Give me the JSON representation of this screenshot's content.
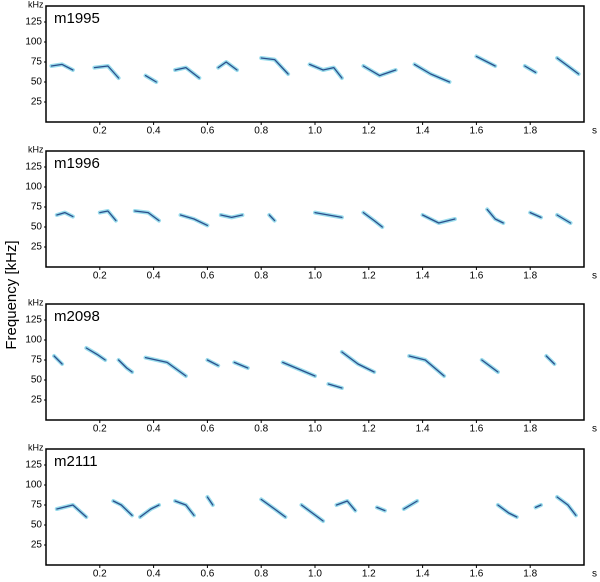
{
  "ylabel": "Frequency [kHz]",
  "chart_data": [
    {
      "type": "spectrogram",
      "title": "m1995",
      "ylabel": "kHz",
      "xlabel": "s",
      "color": "#1fb2d4",
      "xlim": [
        0,
        2
      ],
      "ylim": [
        0,
        145
      ],
      "yticks": [
        25,
        50,
        75,
        100,
        125
      ],
      "xticks": [
        0.2,
        0.4,
        0.6,
        0.8,
        {
          "value": 1,
          "label": "1.0"
        },
        1.2,
        1.4,
        1.6,
        1.8
      ],
      "syllables": [
        {
          "x": [
            0.02,
            0.06,
            0.1
          ],
          "values": [
            70,
            72,
            65
          ]
        },
        {
          "x": [
            0.18,
            0.23,
            0.27
          ],
          "values": [
            68,
            70,
            55
          ]
        },
        {
          "x": [
            0.37,
            0.41
          ],
          "values": [
            58,
            50
          ]
        },
        {
          "x": [
            0.48,
            0.52,
            0.57
          ],
          "values": [
            65,
            68,
            55
          ]
        },
        {
          "x": [
            0.64,
            0.67,
            0.71
          ],
          "values": [
            68,
            75,
            65
          ]
        },
        {
          "x": [
            0.8,
            0.85,
            0.9
          ],
          "values": [
            80,
            78,
            60
          ]
        },
        {
          "x": [
            0.98,
            1.03,
            1.07,
            1.1
          ],
          "values": [
            72,
            65,
            68,
            55
          ]
        },
        {
          "x": [
            1.18,
            1.24,
            1.3
          ],
          "values": [
            70,
            58,
            65
          ]
        },
        {
          "x": [
            1.37,
            1.43,
            1.5
          ],
          "values": [
            72,
            60,
            50
          ]
        },
        {
          "x": [
            1.6,
            1.67
          ],
          "values": [
            82,
            70
          ]
        },
        {
          "x": [
            1.78,
            1.82
          ],
          "values": [
            70,
            62
          ]
        },
        {
          "x": [
            1.9,
            1.94,
            1.98
          ],
          "values": [
            80,
            70,
            60
          ]
        }
      ]
    },
    {
      "type": "spectrogram",
      "title": "m1996",
      "ylabel": "kHz",
      "xlabel": "s",
      "color": "#1fb2d4",
      "xlim": [
        0,
        2
      ],
      "ylim": [
        0,
        145
      ],
      "yticks": [
        25,
        50,
        75,
        100,
        125
      ],
      "xticks": [
        0.2,
        0.4,
        0.6,
        0.8,
        {
          "value": 1,
          "label": "1.0"
        },
        1.2,
        1.4,
        1.6,
        1.8
      ],
      "syllables": [
        {
          "x": [
            0.04,
            0.07,
            0.1
          ],
          "values": [
            65,
            68,
            63
          ]
        },
        {
          "x": [
            0.2,
            0.23,
            0.26
          ],
          "values": [
            68,
            70,
            58
          ]
        },
        {
          "x": [
            0.33,
            0.38,
            0.42
          ],
          "values": [
            70,
            68,
            58
          ]
        },
        {
          "x": [
            0.5,
            0.55,
            0.6
          ],
          "values": [
            65,
            60,
            52
          ]
        },
        {
          "x": [
            0.65,
            0.69,
            0.73
          ],
          "values": [
            65,
            62,
            65
          ]
        },
        {
          "x": [
            0.83,
            0.85
          ],
          "values": [
            65,
            58
          ]
        },
        {
          "x": [
            1.0,
            1.05,
            1.1
          ],
          "values": [
            68,
            65,
            62
          ]
        },
        {
          "x": [
            1.18,
            1.22,
            1.25
          ],
          "values": [
            68,
            58,
            50
          ]
        },
        {
          "x": [
            1.4,
            1.46,
            1.52
          ],
          "values": [
            65,
            55,
            60
          ]
        },
        {
          "x": [
            1.64,
            1.67,
            1.7
          ],
          "values": [
            72,
            60,
            55
          ]
        },
        {
          "x": [
            1.8,
            1.84
          ],
          "values": [
            68,
            62
          ]
        },
        {
          "x": [
            1.9,
            1.95
          ],
          "values": [
            65,
            55
          ]
        }
      ]
    },
    {
      "type": "spectrogram",
      "title": "m2098",
      "ylabel": "kHz",
      "xlabel": "s",
      "color": "#1fb2d4",
      "xlim": [
        0,
        2
      ],
      "ylim": [
        0,
        145
      ],
      "yticks": [
        25,
        50,
        75,
        100,
        125
      ],
      "xticks": [
        0.2,
        0.4,
        0.6,
        0.8,
        {
          "value": 1,
          "label": "1.0"
        },
        1.2,
        1.4,
        1.6,
        1.8
      ],
      "syllables": [
        {
          "x": [
            0.03,
            0.06
          ],
          "values": [
            80,
            70
          ]
        },
        {
          "x": [
            0.15,
            0.19,
            0.22
          ],
          "values": [
            90,
            82,
            75
          ]
        },
        {
          "x": [
            0.27,
            0.3,
            0.32
          ],
          "values": [
            75,
            65,
            60
          ]
        },
        {
          "x": [
            0.37,
            0.45,
            0.52
          ],
          "values": [
            78,
            72,
            55
          ]
        },
        {
          "x": [
            0.6,
            0.64
          ],
          "values": [
            75,
            68
          ]
        },
        {
          "x": [
            0.7,
            0.75
          ],
          "values": [
            72,
            65
          ]
        },
        {
          "x": [
            0.88,
            1.0
          ],
          "values": [
            72,
            55
          ]
        },
        {
          "x": [
            1.05,
            1.1
          ],
          "values": [
            45,
            40
          ]
        },
        {
          "x": [
            1.1,
            1.16,
            1.22
          ],
          "values": [
            85,
            70,
            60
          ]
        },
        {
          "x": [
            1.35,
            1.41,
            1.48
          ],
          "values": [
            80,
            75,
            55
          ]
        },
        {
          "x": [
            1.62,
            1.68
          ],
          "values": [
            75,
            60
          ]
        },
        {
          "x": [
            1.86,
            1.89
          ],
          "values": [
            80,
            70
          ]
        }
      ]
    },
    {
      "type": "spectrogram",
      "title": "m2111",
      "ylabel": "kHz",
      "xlabel": "s",
      "color": "#1fb2d4",
      "xlim": [
        0,
        2
      ],
      "ylim": [
        0,
        145
      ],
      "yticks": [
        25,
        50,
        75,
        100,
        125
      ],
      "xticks": [
        0.2,
        0.4,
        0.6,
        0.8,
        {
          "value": 1,
          "label": "1.0"
        },
        1.2,
        1.4,
        1.6,
        1.8
      ],
      "syllables": [
        {
          "x": [
            0.04,
            0.1,
            0.15
          ],
          "values": [
            70,
            75,
            60
          ]
        },
        {
          "x": [
            0.25,
            0.28,
            0.32
          ],
          "values": [
            80,
            75,
            62
          ]
        },
        {
          "x": [
            0.35,
            0.39,
            0.42
          ],
          "values": [
            60,
            70,
            75
          ]
        },
        {
          "x": [
            0.48,
            0.52,
            0.55
          ],
          "values": [
            80,
            75,
            62
          ]
        },
        {
          "x": [
            0.6,
            0.62
          ],
          "values": [
            85,
            75
          ]
        },
        {
          "x": [
            0.8,
            0.85,
            0.89
          ],
          "values": [
            82,
            70,
            60
          ]
        },
        {
          "x": [
            0.95,
            0.99,
            1.03
          ],
          "values": [
            75,
            65,
            55
          ]
        },
        {
          "x": [
            1.08,
            1.12,
            1.15
          ],
          "values": [
            75,
            80,
            68
          ]
        },
        {
          "x": [
            1.23,
            1.26
          ],
          "values": [
            72,
            68
          ]
        },
        {
          "x": [
            1.33,
            1.38
          ],
          "values": [
            70,
            80
          ]
        },
        {
          "x": [
            1.68,
            1.72,
            1.75
          ],
          "values": [
            75,
            65,
            60
          ]
        },
        {
          "x": [
            1.82,
            1.84
          ],
          "values": [
            72,
            75
          ]
        },
        {
          "x": [
            1.9,
            1.94,
            1.97
          ],
          "values": [
            85,
            75,
            62
          ]
        }
      ]
    }
  ]
}
